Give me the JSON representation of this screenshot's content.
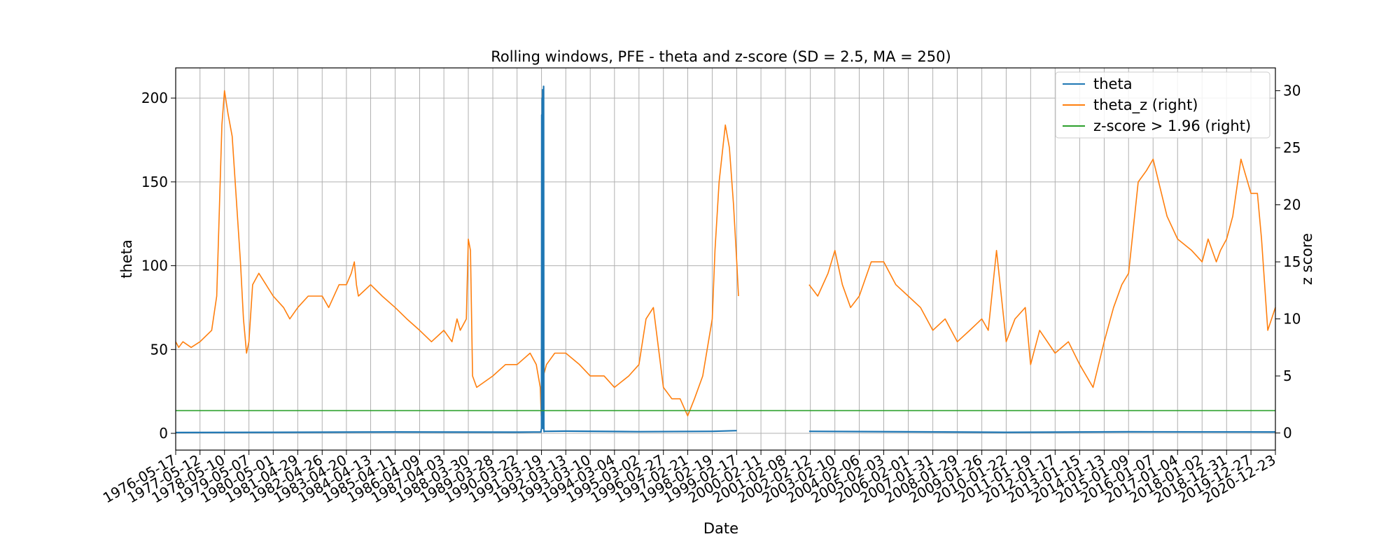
{
  "chart_data": {
    "type": "line",
    "title": "Rolling windows, PFE - theta and z-score (SD = 2.5, MA = 250)",
    "xlabel": "Date",
    "ylabel": "theta",
    "ylabel_right": "z score",
    "ylim": [
      -10,
      218
    ],
    "ylim_right": [
      -1.5,
      32
    ],
    "yticks": [
      0,
      50,
      100,
      150,
      200
    ],
    "yticks_right": [
      0,
      5,
      10,
      15,
      20,
      25,
      30
    ],
    "x_range": [
      "1976-05-17",
      "2020-12-23"
    ],
    "x_ticks": [
      "1976-05-17",
      "1977-05-12",
      "1978-05-10",
      "1979-05-07",
      "1980-05-01",
      "1981-04-29",
      "1982-04-26",
      "1983-04-20",
      "1984-04-13",
      "1985-04-11",
      "1986-04-09",
      "1987-04-03",
      "1988-03-30",
      "1989-03-28",
      "1990-03-22",
      "1991-03-19",
      "1992-03-13",
      "1993-03-10",
      "1994-03-04",
      "1995-03-02",
      "1996-02-27",
      "1997-02-21",
      "1998-02-19",
      "1999-02-17",
      "2000-02-11",
      "2001-02-08",
      "2002-02-12",
      "2003-02-10",
      "2004-02-06",
      "2005-02-03",
      "2006-02-01",
      "2007-01-31",
      "2008-01-29",
      "2009-01-26",
      "2010-01-22",
      "2011-01-19",
      "2012-01-17",
      "2013-01-15",
      "2014-01-13",
      "2015-01-09",
      "2016-01-07",
      "2017-01-04",
      "2018-01-02",
      "2018-12-31",
      "2019-12-27",
      "2020-12-23"
    ],
    "grid": true,
    "legend_position": "top-right",
    "colors": {
      "theta": "#1f77b4",
      "theta_z": "#ff7f0e",
      "threshold": "#2ca02c"
    },
    "series": [
      {
        "name": "theta",
        "axis": "left",
        "x": [
          "1976-05-17",
          "1980-05-01",
          "1985-04-11",
          "1990-03-22",
          "1991-03-10",
          "1991-03-19",
          "1991-03-22",
          "1991-03-26",
          "1991-03-29",
          "1991-04-02",
          "1991-04-05",
          "1991-04-09",
          "1991-04-12",
          "1991-04-16",
          "1991-04-19",
          "1991-04-23",
          "1991-04-26",
          "1991-05-01",
          "1992-03-13",
          "1995-03-02",
          "1998-02-19",
          "1999-02-17"
        ],
        "values": [
          0.5,
          0.6,
          0.8,
          0.7,
          0.8,
          3,
          190,
          5,
          200,
          8,
          205,
          3,
          195,
          6,
          207,
          4,
          1,
          1.2,
          1.3,
          1.0,
          1.2,
          1.6
        ]
      },
      {
        "name": "",
        "axis": "left",
        "x": [
          "2002-01-25",
          "2006-02-01",
          "2010-01-22",
          "2015-01-09",
          "2020-12-23"
        ],
        "values": [
          1.2,
          0.9,
          0.6,
          0.9,
          0.8
        ]
      },
      {
        "name": "theta_z (right)",
        "axis": "right",
        "x": [
          "1976-05-17",
          "1976-07-01",
          "1976-09-01",
          "1977-01-01",
          "1977-05-12",
          "1977-11-01",
          "1978-01-15",
          "1978-02-15",
          "1978-04-01",
          "1978-05-10",
          "1978-07-01",
          "1978-09-01",
          "1979-01-01",
          "1979-02-15",
          "1979-04-01",
          "1979-05-07",
          "1979-07-01",
          "1979-10-01",
          "1980-05-01",
          "1980-10-01",
          "1981-01-01",
          "1981-04-29",
          "1981-10-01",
          "1982-04-26",
          "1982-08-01",
          "1983-01-01",
          "1983-04-20",
          "1983-07-01",
          "1983-08-15",
          "1983-09-15",
          "1983-10-15",
          "1984-04-13",
          "1984-10-01",
          "1985-04-11",
          "1985-10-01",
          "1986-04-09",
          "1986-10-01",
          "1987-04-03",
          "1987-08-01",
          "1987-10-15",
          "1987-12-01",
          "1988-03-01",
          "1988-03-30",
          "1988-05-01",
          "1988-06-01",
          "1988-08-01",
          "1989-03-28",
          "1989-10-01",
          "1990-03-22",
          "1990-10-01",
          "1991-01-01",
          "1991-03-01",
          "1991-03-15",
          "1991-04-01",
          "1991-04-15",
          "1991-06-01",
          "1991-10-01",
          "1992-03-13",
          "1992-10-01",
          "1993-03-10",
          "1993-10-01",
          "1994-03-04",
          "1994-10-01",
          "1995-03-02",
          "1995-06-15",
          "1995-10-01",
          "1996-02-27",
          "1996-07-01",
          "1996-11-01",
          "1997-02-21",
          "1997-06-01",
          "1997-10-01",
          "1998-02-19",
          "1998-04-01",
          "1998-06-01",
          "1998-09-01",
          "1998-11-01",
          "1999-01-01",
          "1999-02-17",
          "1999-03-15"
        ],
        "values": [
          8,
          7.5,
          8,
          7.5,
          8,
          9,
          12,
          18,
          27,
          30,
          28,
          26,
          15,
          10,
          7,
          8,
          13,
          14,
          12,
          11,
          10,
          11,
          12,
          12,
          11,
          13,
          13,
          14,
          15,
          13,
          12,
          13,
          12,
          11,
          10,
          9,
          8,
          9,
          8,
          10,
          9,
          10,
          17,
          16,
          5,
          4,
          5,
          6,
          6,
          7,
          6,
          4,
          1.5,
          0.5,
          5,
          6,
          7,
          7,
          6,
          5,
          5,
          4,
          5,
          6,
          10,
          11,
          4,
          3,
          3,
          1.5,
          3,
          5,
          10,
          16,
          22,
          27,
          25,
          20,
          15,
          12
        ]
      },
      {
        "name": "",
        "axis": "right",
        "x": [
          "2002-01-25",
          "2002-06-01",
          "2002-11-01",
          "2003-02-10",
          "2003-06-01",
          "2003-10-01",
          "2004-02-06",
          "2004-08-01",
          "2005-02-03",
          "2005-08-01",
          "2006-02-01",
          "2006-08-01",
          "2007-01-31",
          "2007-08-01",
          "2008-01-29",
          "2008-08-01",
          "2009-01-26",
          "2009-05-01",
          "2009-09-01",
          "2010-01-22",
          "2010-06-01",
          "2010-11-01",
          "2011-01-19",
          "2011-06-01",
          "2012-01-17",
          "2012-08-01",
          "2013-01-15",
          "2013-08-01",
          "2014-01-13",
          "2014-06-01",
          "2014-10-01",
          "2015-01-09",
          "2015-06-01",
          "2015-10-01",
          "2016-01-07",
          "2016-08-01",
          "2017-01-04",
          "2017-08-01",
          "2018-01-02",
          "2018-04-01",
          "2018-08-01",
          "2018-10-01",
          "2018-12-31",
          "2019-04-01",
          "2019-08-01",
          "2019-12-27",
          "2020-04-01",
          "2020-06-01",
          "2020-09-01",
          "2020-12-23"
        ],
        "values": [
          13,
          12,
          14,
          16,
          13,
          11,
          12,
          15,
          15,
          13,
          12,
          11,
          9,
          10,
          8,
          9,
          10,
          9,
          16,
          8,
          10,
          11,
          6,
          9,
          7,
          8,
          6,
          4,
          8,
          11,
          13,
          14,
          22,
          23,
          24,
          19,
          17,
          16,
          15,
          17,
          15,
          16,
          17,
          19,
          24,
          21,
          21,
          17,
          9,
          11
        ]
      },
      {
        "name": "z-score > 1.96 (right)",
        "axis": "right",
        "x": [
          "1976-05-17",
          "2020-12-23"
        ],
        "values": [
          1.96,
          1.96
        ]
      }
    ]
  }
}
